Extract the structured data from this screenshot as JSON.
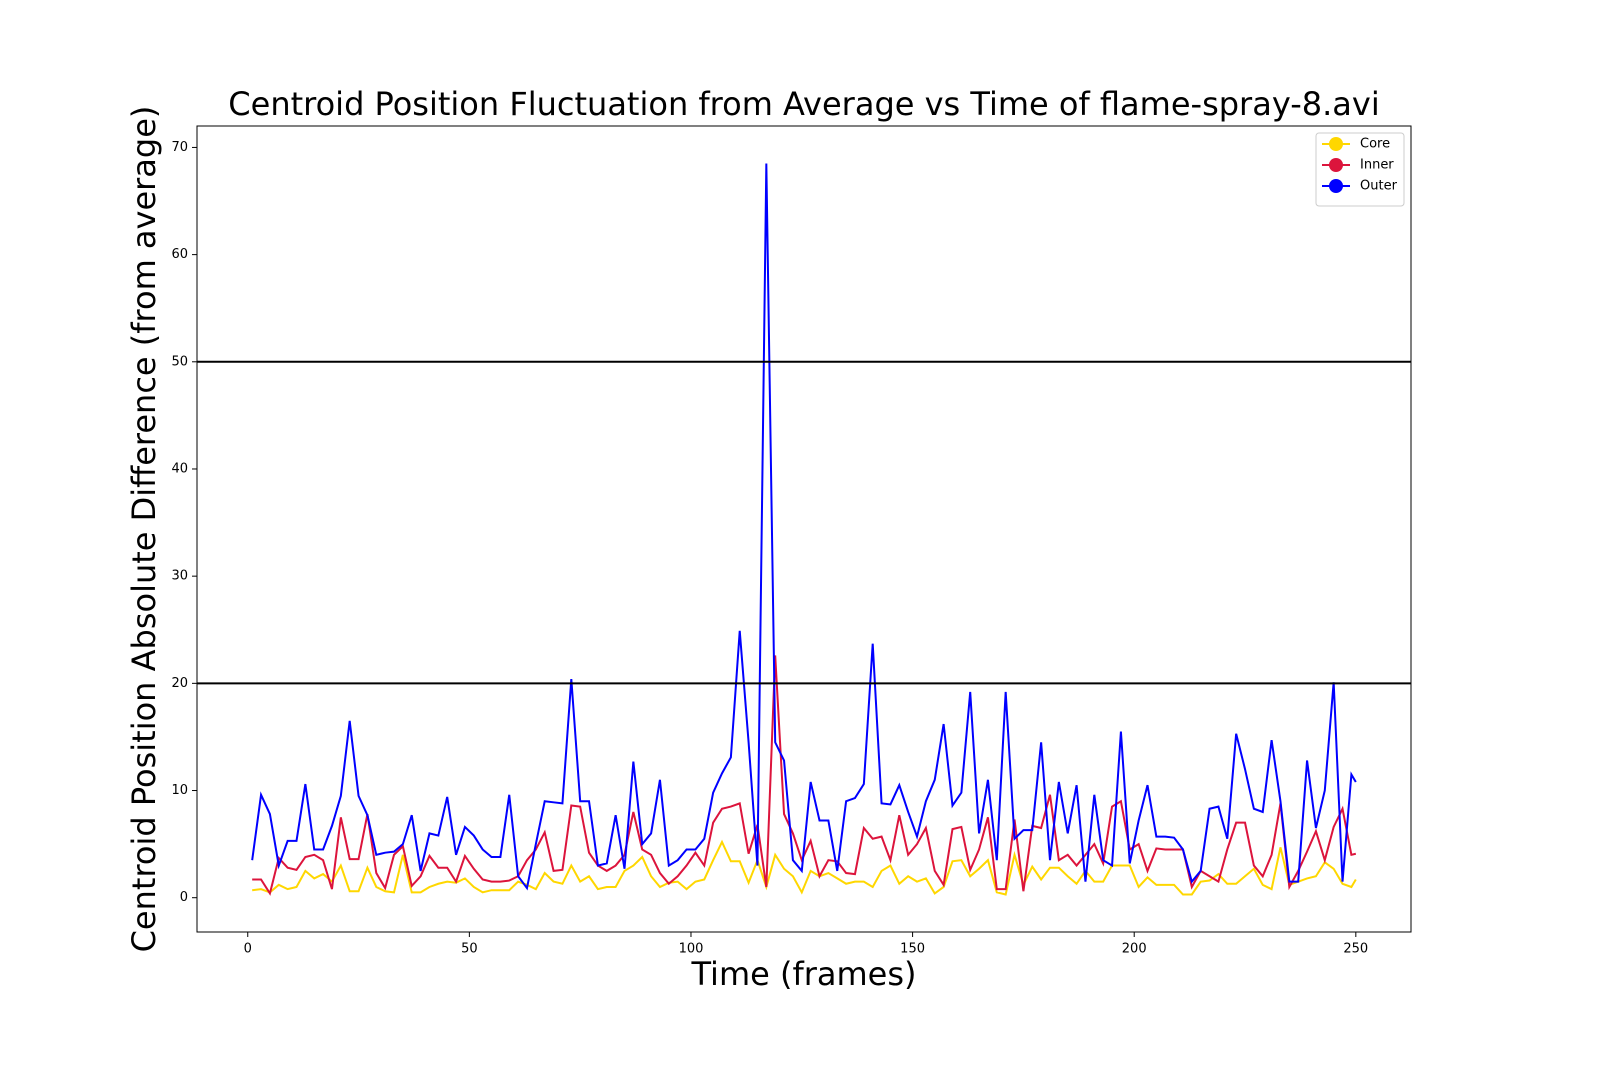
{
  "chart_data": {
    "type": "line",
    "title": "Centroid Position Fluctuation from Average vs Time of flame-spray-8.avi",
    "xlabel": "Time (frames)",
    "ylabel": "Centroid Position Absolute Difference (from average)",
    "x": [
      1,
      3,
      5,
      7,
      9,
      11,
      13,
      15,
      17,
      19,
      21,
      23,
      25,
      27,
      29,
      31,
      33,
      35,
      37,
      39,
      41,
      43,
      45,
      47,
      49,
      51,
      53,
      55,
      57,
      59,
      61,
      63,
      65,
      67,
      69,
      71,
      73,
      75,
      77,
      79,
      81,
      83,
      85,
      87,
      89,
      91,
      93,
      95,
      97,
      99,
      101,
      103,
      105,
      107,
      109,
      111,
      113,
      115,
      117,
      119,
      121,
      123,
      125,
      127,
      129,
      131,
      133,
      135,
      137,
      139,
      141,
      143,
      145,
      147,
      149,
      151,
      153,
      155,
      157,
      159,
      161,
      163,
      165,
      167,
      169,
      171,
      173,
      175,
      177,
      179,
      181,
      183,
      185,
      187,
      189,
      191,
      193,
      195,
      197,
      199,
      201,
      203,
      205,
      207,
      209,
      211,
      213,
      215,
      217,
      219,
      221,
      223,
      225,
      227,
      229,
      231,
      233,
      235,
      237,
      239,
      241,
      243,
      245,
      247,
      249,
      250
    ],
    "series": [
      {
        "name": "Core",
        "color": "#ffd700",
        "values": [
          0.7,
          0.8,
          0.5,
          1.2,
          0.8,
          1,
          2.5,
          1.8,
          2.2,
          1.5,
          3,
          0.6,
          0.6,
          2.8,
          1,
          0.6,
          0.5,
          4,
          0.5,
          0.5,
          1,
          1.3,
          1.5,
          1.4,
          1.8,
          1,
          0.5,
          0.7,
          0.7,
          0.7,
          1.5,
          1.2,
          0.8,
          2.3,
          1.5,
          1.3,
          3,
          1.5,
          2,
          0.8,
          1,
          1,
          2.5,
          3,
          3.8,
          2,
          1,
          1.4,
          1.5,
          0.8,
          1.5,
          1.7,
          3.5,
          5.2,
          3.4,
          3.4,
          1.4,
          3.5,
          1,
          4,
          2.7,
          2,
          0.5,
          2.5,
          2,
          2.3,
          1.8,
          1.3,
          1.5,
          1.5,
          1,
          2.5,
          3,
          1.3,
          2,
          1.5,
          1.8,
          0.4,
          1,
          3.4,
          3.5,
          2,
          2.7,
          3.5,
          0.5,
          0.3,
          4,
          1.2,
          2.9,
          1.7,
          2.8,
          2.8,
          2,
          1.3,
          2.5,
          1.5,
          1.5,
          3,
          3,
          3,
          1,
          1.9,
          1.2,
          1.2,
          1.2,
          0.3,
          0.3,
          1.5,
          1.6,
          2.2,
          1.3,
          1.3,
          2,
          2.7,
          1.2,
          0.8,
          4.7,
          1.2,
          1.5,
          1.8,
          2,
          3.3,
          2.7,
          1.3,
          1,
          1.7
        ]
      },
      {
        "name": "Inner",
        "color": "#dc143c",
        "values": [
          1.7,
          1.7,
          0.4,
          3.7,
          2.8,
          2.6,
          3.8,
          4,
          3.5,
          0.8,
          7.5,
          3.6,
          3.6,
          7.8,
          2.3,
          0.9,
          4,
          4.8,
          1.1,
          2,
          3.9,
          2.8,
          2.8,
          1.5,
          3.9,
          2.7,
          1.7,
          1.5,
          1.5,
          1.6,
          2,
          3.5,
          4.5,
          6.1,
          2.5,
          2.6,
          8.6,
          8.5,
          4.2,
          3,
          2.5,
          3,
          4,
          8,
          4.5,
          4,
          2.3,
          1.3,
          2,
          3,
          4.2,
          3,
          7,
          8.3,
          8.5,
          8.8,
          4.1,
          6.8,
          1,
          22.6,
          7.8,
          6,
          3.5,
          5.3,
          2,
          3.5,
          3.4,
          2.3,
          2.2,
          6.5,
          5.5,
          5.7,
          3.5,
          7.7,
          4,
          5,
          6.5,
          2.5,
          1.2,
          6.4,
          6.6,
          2.6,
          4.5,
          7.5,
          0.8,
          0.8,
          7.3,
          0.6,
          6.7,
          6.5,
          9.6,
          3.5,
          4,
          3,
          4,
          5,
          3.2,
          8.5,
          9,
          4.5,
          5,
          2.5,
          4.6,
          4.5,
          4.5,
          4.5,
          1,
          2.5,
          2,
          1.5,
          4.5,
          7,
          7,
          3,
          2,
          4,
          8.8,
          1,
          2.5,
          4.3,
          6.2,
          3.5,
          6.6,
          8.3,
          4,
          4.1
        ]
      },
      {
        "name": "Outer",
        "color": "#0000ff",
        "values": [
          3.5,
          9.6,
          7.8,
          3,
          5.3,
          5.3,
          10.6,
          4.5,
          4.5,
          6.7,
          9.5,
          16.5,
          9.5,
          7.7,
          4,
          4.2,
          4.3,
          5,
          7.7,
          2.5,
          6,
          5.8,
          9.4,
          4,
          6.6,
          5.8,
          4.5,
          3.8,
          3.8,
          9.6,
          2,
          0.9,
          5,
          9,
          8.9,
          8.8,
          20.4,
          9,
          9,
          3,
          3.2,
          7.7,
          2.7,
          12.7,
          5,
          6,
          11,
          3,
          3.5,
          4.5,
          4.5,
          5.5,
          9.8,
          11.6,
          13.1,
          24.9,
          14.5,
          3,
          68.5,
          14.5,
          12.8,
          3.5,
          2.5,
          10.8,
          7.2,
          7.2,
          2.5,
          9,
          9.3,
          10.6,
          23.7,
          8.8,
          8.7,
          10.5,
          8,
          5.7,
          9,
          11,
          16.2,
          8.6,
          9.8,
          19.2,
          6,
          11,
          3.5,
          19.2,
          5.5,
          6.3,
          6.3,
          14.5,
          3.5,
          10.8,
          6,
          10.5,
          1.5,
          9.6,
          3.5,
          3,
          15.5,
          3.2,
          7.2,
          10.5,
          5.7,
          5.7,
          5.6,
          4.5,
          1.5,
          2.5,
          8.3,
          8.5,
          5.5,
          15.3,
          12,
          8.3,
          8,
          14.7,
          9,
          1.5,
          1.5,
          12.8,
          6.5,
          10,
          20.1,
          1.5,
          11.5,
          10.8
        ]
      }
    ],
    "hlines": [
      20,
      50
    ],
    "hline_color": "#000000",
    "xlim": [
      -11.45,
      262.45
    ],
    "xticks": [
      0,
      50,
      100,
      150,
      200,
      250
    ],
    "ylim": [
      -3.2,
      72
    ],
    "yticks": [
      0,
      10,
      20,
      30,
      40,
      50,
      60,
      70
    ],
    "legend": "upper right",
    "grid": false
  }
}
